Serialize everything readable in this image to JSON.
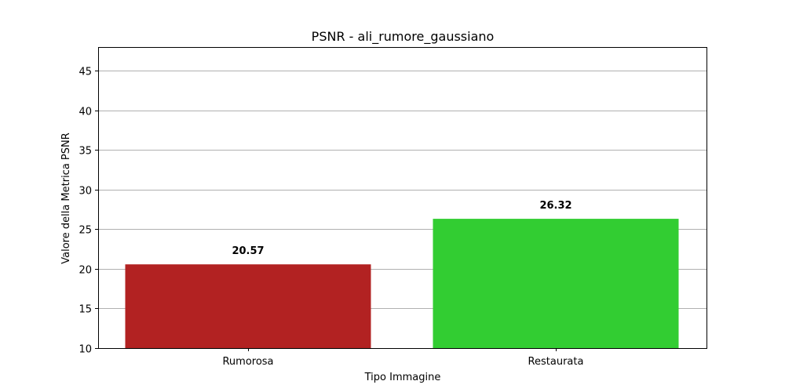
{
  "chart_data": {
    "type": "bar",
    "title": "PSNR - ali_rumore_gaussiano",
    "xlabel": "Tipo Immagine",
    "ylabel": "Valore della Metrica PSNR",
    "categories": [
      "Rumorosa",
      "Restaurata"
    ],
    "values": [
      20.57,
      26.32
    ],
    "value_labels": [
      "20.57",
      "26.32"
    ],
    "colors": [
      "#b22222",
      "#32cd32"
    ],
    "ylim": [
      10,
      48
    ],
    "yticks": [
      10,
      15,
      20,
      25,
      30,
      35,
      40,
      45
    ],
    "grid": "horizontal",
    "legend": "none"
  }
}
